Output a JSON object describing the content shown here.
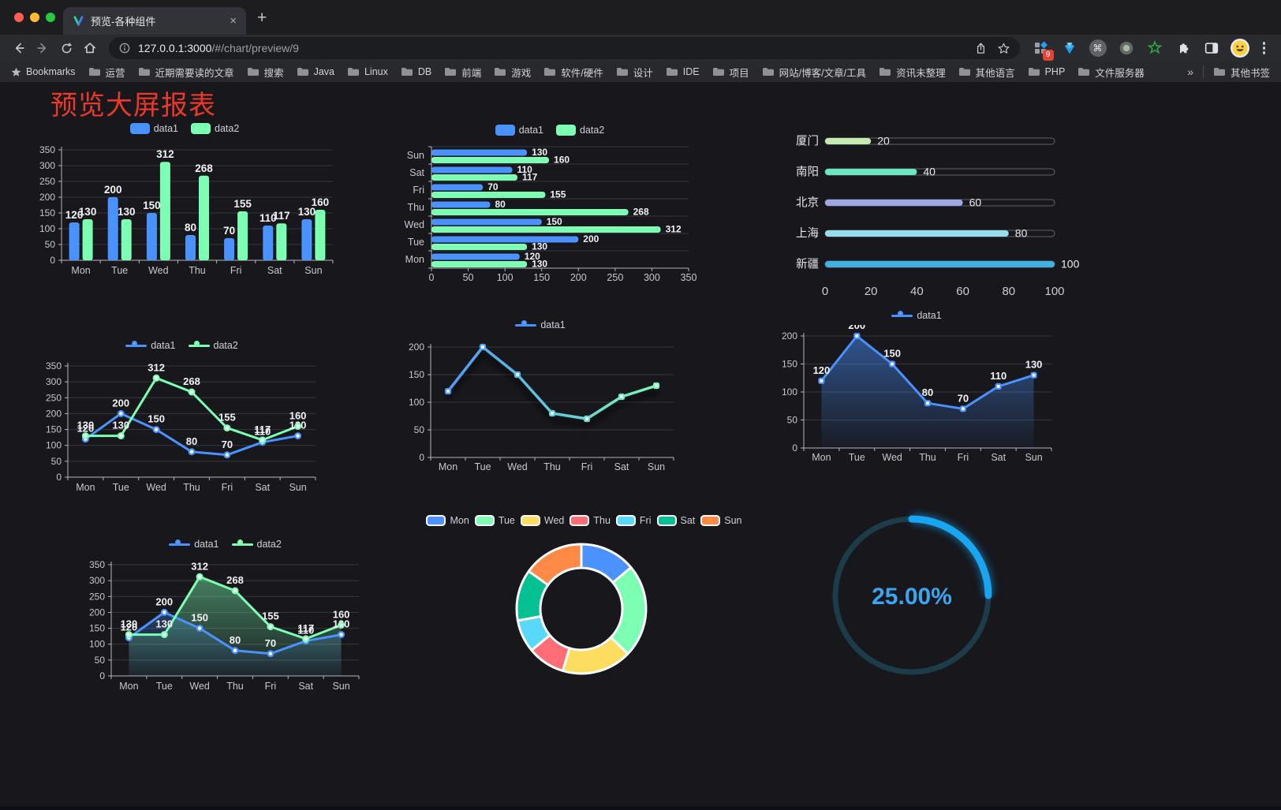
{
  "browser": {
    "traffic_lights": [
      "#ff5f57",
      "#febc2e",
      "#28c840"
    ],
    "tab_title": "预览-各种组件",
    "url": {
      "host": "127.0.0.1:3000",
      "path": "/#/chart/preview/9"
    },
    "bookmarks_label": "Bookmarks",
    "bookmark_folders": [
      "运营",
      "近期需要读的文章",
      "搜索",
      "Java",
      "Linux",
      "DB",
      "前端",
      "游戏",
      "软件/硬件",
      "设计",
      "IDE",
      "项目",
      "网站/博客/文章/工具",
      "资讯未整理",
      "其他语言",
      "PHP",
      "文件服务器"
    ],
    "bookmarks_overflow": "»",
    "other_bookmarks_label": "其他书签",
    "extension_badge_count": "9"
  },
  "page": {
    "title": "预览大屏报表",
    "title_color": "#e8392b"
  },
  "chart_data": [
    {
      "id": "c1",
      "type": "bar",
      "legend_position": "top",
      "categories": [
        "Mon",
        "Tue",
        "Wed",
        "Thu",
        "Fri",
        "Sat",
        "Sun"
      ],
      "series": [
        {
          "name": "data1",
          "color": "#4992ff",
          "values": [
            120,
            200,
            150,
            80,
            70,
            110,
            130
          ]
        },
        {
          "name": "data2",
          "color": "#7cffb2",
          "values": [
            130,
            130,
            312,
            268,
            155,
            117,
            160
          ]
        }
      ],
      "ylim": [
        0,
        350
      ],
      "yticks": [
        0,
        50,
        100,
        150,
        200,
        250,
        300,
        350
      ],
      "grid": true
    },
    {
      "id": "c2",
      "type": "bar",
      "orientation": "horizontal",
      "legend_position": "top",
      "categories": [
        "Mon",
        "Tue",
        "Wed",
        "Thu",
        "Fri",
        "Sat",
        "Sun"
      ],
      "series": [
        {
          "name": "data1",
          "color": "#4992ff",
          "values": [
            120,
            200,
            150,
            80,
            70,
            110,
            130
          ]
        },
        {
          "name": "data2",
          "color": "#7cffb2",
          "values": [
            130,
            130,
            312,
            268,
            155,
            117,
            160
          ]
        }
      ],
      "xlim": [
        0,
        350
      ],
      "xticks": [
        0,
        50,
        100,
        150,
        200,
        250,
        300,
        350
      ],
      "grid": true,
      "category_order_note": "Mon at bottom, Sun at top"
    },
    {
      "id": "c3",
      "type": "bar",
      "variant": "progress",
      "categories": [
        "厦门",
        "南阳",
        "北京",
        "上海",
        "新疆"
      ],
      "values": [
        20,
        40,
        60,
        80,
        100
      ],
      "colors": [
        "#c4ebad",
        "#6be6c1",
        "#a0a7e6",
        "#96dee8",
        "#3fb1e3"
      ],
      "xlim": [
        0,
        100
      ],
      "xticks": [
        0,
        20,
        40,
        60,
        80,
        100
      ]
    },
    {
      "id": "c4",
      "type": "line",
      "legend_position": "top",
      "labels": true,
      "markers": true,
      "categories": [
        "Mon",
        "Tue",
        "Wed",
        "Thu",
        "Fri",
        "Sat",
        "Sun"
      ],
      "series": [
        {
          "name": "data1",
          "color": "#4992ff",
          "values": [
            120,
            200,
            150,
            80,
            70,
            110,
            130
          ]
        },
        {
          "name": "data2",
          "color": "#7cffb2",
          "values": [
            130,
            130,
            312,
            268,
            155,
            117,
            160
          ]
        }
      ],
      "ylim": [
        0,
        350
      ],
      "yticks": [
        0,
        50,
        100,
        150,
        200,
        250,
        300,
        350
      ],
      "grid": true
    },
    {
      "id": "c5",
      "type": "line",
      "legend_position": "top",
      "labels": false,
      "markers": true,
      "shadow": true,
      "categories": [
        "Mon",
        "Tue",
        "Wed",
        "Thu",
        "Fri",
        "Sat",
        "Sun"
      ],
      "series": [
        {
          "name": "data1",
          "gradient": [
            "#4992ff",
            "#7cffb2"
          ],
          "values": [
            120,
            200,
            150,
            80,
            70,
            110,
            130
          ]
        }
      ],
      "ylim": [
        0,
        200
      ],
      "yticks": [
        0,
        50,
        100,
        150,
        200
      ],
      "grid": true
    },
    {
      "id": "c6",
      "type": "line",
      "area": true,
      "legend_position": "top",
      "labels": true,
      "markers": true,
      "categories": [
        "Mon",
        "Tue",
        "Wed",
        "Thu",
        "Fri",
        "Sat",
        "Sun"
      ],
      "series": [
        {
          "name": "data1",
          "color": "#4992ff",
          "values": [
            120,
            200,
            150,
            80,
            70,
            110,
            130
          ]
        }
      ],
      "ylim": [
        0,
        200
      ],
      "yticks": [
        0,
        50,
        100,
        150,
        200
      ],
      "grid": true
    },
    {
      "id": "c7",
      "type": "line",
      "area": true,
      "legend_position": "top",
      "labels": true,
      "markers": true,
      "categories": [
        "Mon",
        "Tue",
        "Wed",
        "Thu",
        "Fri",
        "Sat",
        "Sun"
      ],
      "series": [
        {
          "name": "data1",
          "color": "#4992ff",
          "values": [
            120,
            200,
            150,
            80,
            70,
            110,
            130
          ]
        },
        {
          "name": "data2",
          "color": "#7cffb2",
          "values": [
            130,
            130,
            312,
            268,
            155,
            117,
            160
          ]
        }
      ],
      "ylim": [
        0,
        350
      ],
      "yticks": [
        0,
        50,
        100,
        150,
        200,
        250,
        300,
        350
      ],
      "grid": true
    },
    {
      "id": "c8",
      "type": "pie",
      "legend_position": "top",
      "donut": true,
      "categories": [
        "Mon",
        "Tue",
        "Wed",
        "Thu",
        "Fri",
        "Sat",
        "Sun"
      ],
      "values": [
        120,
        200,
        150,
        80,
        70,
        110,
        130
      ],
      "colors": [
        "#4992ff",
        "#7cffb2",
        "#fddd60",
        "#ff6e76",
        "#58d9f9",
        "#05c091",
        "#ff8a45"
      ]
    },
    {
      "id": "c9",
      "type": "gauge",
      "label": "25.00%",
      "value": 25,
      "max": 100,
      "color": "#18a6f2",
      "track_color": "#1d3c4a",
      "text_color": "#3aa5f1"
    }
  ]
}
